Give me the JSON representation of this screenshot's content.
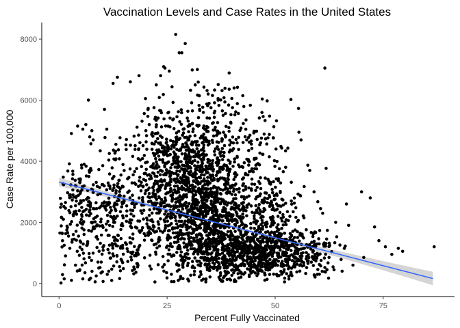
{
  "chart_data": {
    "type": "scatter",
    "title": "Vaccination Levels and Case Rates in the United States",
    "xlabel": "Percent Fully Vaccinated",
    "ylabel": "Case Rate per 100,000",
    "xlim": [
      -4,
      91.5
    ],
    "ylim": [
      -430,
      8540
    ],
    "x_ticks": [
      0,
      25,
      50,
      75
    ],
    "y_ticks": [
      0,
      2000,
      4000,
      6000,
      8000
    ],
    "x_tick_labels": [
      "0",
      "25",
      "50",
      "75"
    ],
    "y_tick_labels": [
      "0",
      "2000",
      "4000",
      "6000",
      "8000"
    ],
    "grid": false,
    "legend": "none",
    "point_color": "#000000",
    "trend": {
      "method": "linear",
      "from": [
        0,
        3320
      ],
      "to": [
        86.5,
        160
      ],
      "band_halfwidth_ends": [
        140,
        220
      ],
      "band_halfwidth_mid": 45,
      "line_color": "#3366ff",
      "band_color": "#bebebe"
    },
    "points": [
      [
        0.2,
        1650
      ],
      [
        0.8,
        1400
      ],
      [
        1.0,
        2100
      ],
      [
        1.2,
        1250
      ],
      [
        1.5,
        900
      ],
      [
        1.8,
        1750
      ],
      [
        2.2,
        1550
      ],
      [
        2.5,
        1150
      ],
      [
        3.0,
        1350
      ],
      [
        3.3,
        1600
      ],
      [
        3.5,
        1450
      ],
      [
        4.2,
        1050
      ],
      [
        4.5,
        1550
      ],
      [
        5.0,
        1350
      ],
      [
        1.2,
        150
      ],
      [
        4.8,
        450
      ],
      [
        3.8,
        600
      ],
      [
        6.0,
        350
      ],
      [
        5.5,
        150
      ],
      [
        7.0,
        850
      ],
      [
        6.5,
        1250
      ],
      [
        4.3,
        5150
      ],
      [
        5.5,
        5050
      ],
      [
        6.2,
        5200
      ],
      [
        6.8,
        6000
      ],
      [
        7.1,
        4800
      ],
      [
        7.6,
        5000
      ],
      [
        7.9,
        4700
      ],
      [
        5.8,
        3900
      ],
      [
        6.9,
        3500
      ],
      [
        10.5,
        5700
      ],
      [
        12.5,
        6550
      ],
      [
        13.5,
        6750
      ],
      [
        16.5,
        6600
      ],
      [
        18.5,
        6800
      ],
      [
        20.0,
        6050
      ],
      [
        22.5,
        6500
      ],
      [
        23.5,
        6800
      ],
      [
        24.5,
        7050
      ],
      [
        25.5,
        6950
      ],
      [
        27.0,
        8150
      ],
      [
        27.8,
        7550
      ],
      [
        28.4,
        7550
      ],
      [
        29.2,
        7850
      ],
      [
        31.5,
        6500
      ],
      [
        34.5,
        6200
      ],
      [
        35.5,
        6150
      ],
      [
        36.8,
        6050
      ],
      [
        40.5,
        6400
      ],
      [
        61.5,
        7050
      ],
      [
        55.5,
        4950
      ],
      [
        56.0,
        4700
      ],
      [
        58.0,
        3700
      ],
      [
        59.0,
        3000
      ],
      [
        60.5,
        2450
      ],
      [
        61.0,
        2300
      ],
      [
        64.0,
        2000
      ],
      [
        66.5,
        2600
      ],
      [
        67.0,
        1900
      ],
      [
        70.0,
        3000
      ],
      [
        72.0,
        2800
      ],
      [
        73.0,
        1850
      ],
      [
        74.0,
        1400
      ],
      [
        75.5,
        1200
      ],
      [
        77.0,
        950
      ],
      [
        78.5,
        1150
      ],
      [
        79.5,
        1050
      ],
      [
        86.8,
        1200
      ],
      [
        70.5,
        850
      ],
      [
        66.0,
        1150
      ],
      [
        68.0,
        600
      ],
      [
        65.5,
        400
      ],
      [
        62.0,
        450
      ],
      [
        50.5,
        250
      ],
      [
        30.0,
        80
      ],
      [
        33.0,
        100
      ],
      [
        28.0,
        150
      ],
      [
        37.0,
        200
      ],
      [
        26.0,
        300
      ],
      [
        43.0,
        350
      ],
      [
        47.0,
        400
      ],
      [
        14.0,
        550
      ],
      [
        18.0,
        650
      ],
      [
        9.0,
        700
      ],
      [
        11.5,
        400
      ]
    ],
    "clusters": [
      {
        "cx": 33,
        "cy": 2600,
        "sx": 5.5,
        "sy": 1200,
        "n": 1100,
        "seed": 11
      },
      {
        "cx": 43,
        "cy": 1000,
        "sx": 7,
        "sy": 450,
        "n": 600,
        "seed": 23
      },
      {
        "cx": 25,
        "cy": 4000,
        "sx": 4,
        "sy": 900,
        "n": 300,
        "seed": 37
      },
      {
        "cx": 14,
        "cy": 2100,
        "sx": 5.5,
        "sy": 1100,
        "n": 340,
        "seed": 41
      },
      {
        "cx": 5,
        "cy": 2400,
        "sx": 3.5,
        "sy": 1000,
        "n": 130,
        "seed": 53
      },
      {
        "cx": 36,
        "cy": 4600,
        "sx": 7,
        "sy": 900,
        "n": 240,
        "seed": 67
      },
      {
        "cx": 55,
        "cy": 1000,
        "sx": 5.5,
        "sy": 500,
        "n": 220,
        "seed": 71
      },
      {
        "cx": 38,
        "cy": 1600,
        "sx": 8,
        "sy": 900,
        "n": 300,
        "seed": 83
      },
      {
        "cx": 48,
        "cy": 2700,
        "sx": 4.5,
        "sy": 800,
        "n": 120,
        "seed": 97
      }
    ]
  }
}
